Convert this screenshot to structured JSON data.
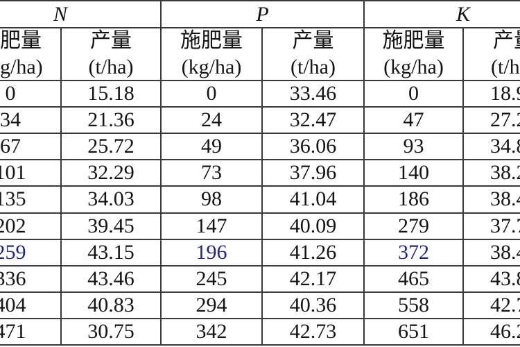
{
  "chart_data": {
    "type": "table",
    "groups": [
      "N",
      "P",
      "K"
    ],
    "columns": [
      {
        "name": "肥量",
        "unit": "g/ha)"
      },
      {
        "name": "产量",
        "unit": "(t/ha)"
      },
      {
        "name": "施肥量",
        "unit": "(kg/ha)"
      },
      {
        "name": "产量",
        "unit": "(t/ha)"
      },
      {
        "name": "施肥量",
        "unit": "(kg/ha)"
      },
      {
        "name": "产量",
        "unit": "(t/h"
      }
    ],
    "rows": [
      [
        "0",
        "15.18",
        "0",
        "33.46",
        "0",
        "18.9"
      ],
      [
        "34",
        "21.36",
        "24",
        "32.47",
        "47",
        "27.2"
      ],
      [
        "67",
        "25.72",
        "49",
        "36.06",
        "93",
        "34.8"
      ],
      [
        "101",
        "32.29",
        "73",
        "37.96",
        "140",
        "38.2"
      ],
      [
        "135",
        "34.03",
        "98",
        "41.04",
        "186",
        "38.4"
      ],
      [
        "202",
        "39.45",
        "147",
        "40.09",
        "279",
        "37.7"
      ],
      [
        "259",
        "43.15",
        "196",
        "41.26",
        "372",
        "38.4"
      ],
      [
        "336",
        "43.46",
        "245",
        "42.17",
        "465",
        "43.8"
      ],
      [
        "404",
        "40.83",
        "294",
        "40.36",
        "558",
        "42.7"
      ],
      [
        "471",
        "30.75",
        "342",
        "42.73",
        "651",
        "46.2"
      ]
    ],
    "highlight_row": 6,
    "highlight_color": "#25257a"
  }
}
